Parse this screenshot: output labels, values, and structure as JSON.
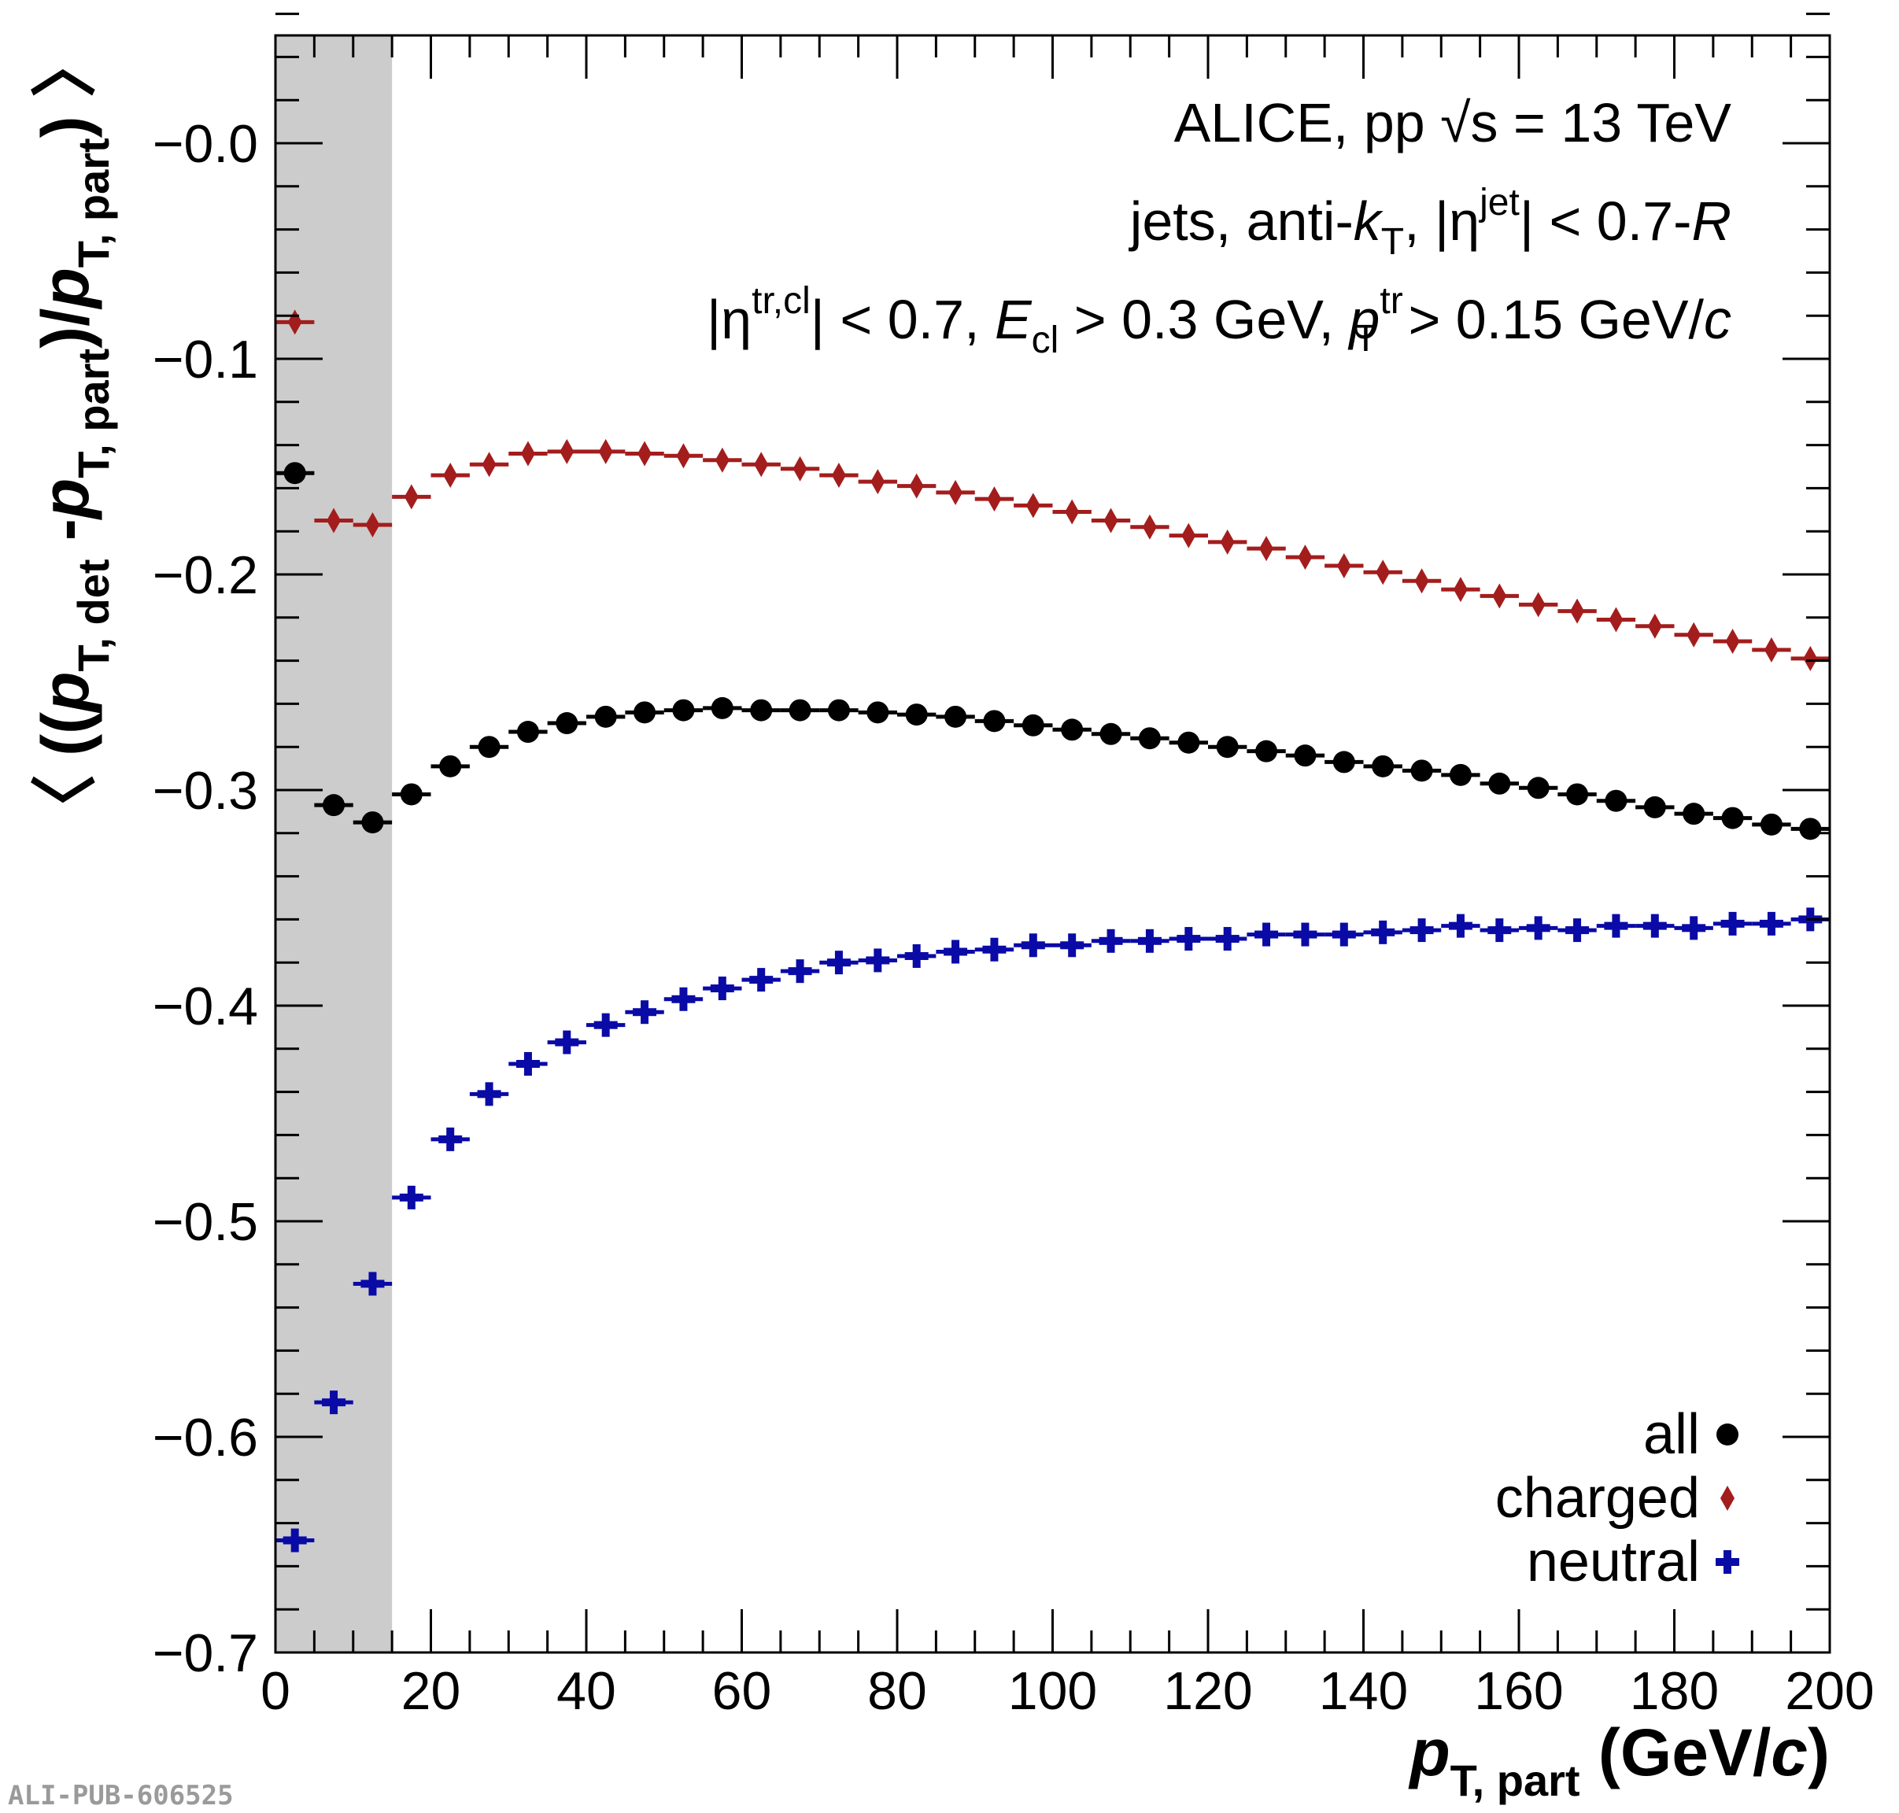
{
  "chart_data": {
    "type": "scatter",
    "xlim": [
      0,
      200
    ],
    "ylim": [
      -0.7,
      0.05
    ],
    "x_ticks": [
      0,
      20,
      40,
      60,
      80,
      100,
      120,
      140,
      160,
      180,
      200
    ],
    "x_tick_labels": [
      "0",
      "20",
      "40",
      "60",
      "80",
      "100",
      "120",
      "140",
      "160",
      "180",
      "200"
    ],
    "y_ticks": [
      -0.7,
      -0.6,
      -0.5,
      -0.4,
      -0.3,
      -0.2,
      -0.1,
      0.0
    ],
    "y_tick_labels": [
      "−0.7",
      "−0.6",
      "−0.5",
      "−0.4",
      "−0.3",
      "−0.2",
      "−0.1",
      "−0.0"
    ],
    "shaded_region_x": [
      0,
      15
    ],
    "grid": false,
    "legend_position": "bottom-right",
    "xlabel": {
      "main": "p",
      "sub": "T, part",
      "rest": " (GeV/",
      "unit_c": "c",
      "close": ")"
    },
    "ylabel": {
      "open": "〈 ((",
      "p1": "p",
      "s1": "T, det",
      "mid": " -",
      "p2": "p",
      "s2": "T, part",
      "div": ")/",
      "p3": "p",
      "s3": "T, part",
      "close": ") 〉"
    },
    "annotations": {
      "line1": {
        "a": "ALICE, pp  ",
        "sqrt": "√s",
        "b": " = 13 TeV"
      },
      "line2": {
        "a": "jets, anti-",
        "k": "k",
        "kT": "T",
        "b": ", |η",
        "jet": "jet",
        "c": "| < 0.7-",
        "R": "R"
      },
      "line3": {
        "a": "|η",
        "trcl": "tr,cl",
        "b": "| < 0.7, ",
        "E": "E",
        "cl": "cl",
        "c": " > 0.3 GeV, ",
        "p": "p",
        "tr": "tr",
        "T": "T",
        "d": " > 0.15 GeV/",
        "cc": "c"
      }
    },
    "x": [
      2.5,
      7.5,
      12.5,
      17.5,
      22.5,
      27.5,
      32.5,
      37.5,
      42.5,
      47.5,
      52.5,
      57.5,
      62.5,
      67.5,
      72.5,
      77.5,
      82.5,
      87.5,
      92.5,
      97.5,
      102.5,
      107.5,
      112.5,
      117.5,
      122.5,
      127.5,
      132.5,
      137.5,
      142.5,
      147.5,
      152.5,
      157.5,
      162.5,
      167.5,
      172.5,
      177.5,
      182.5,
      187.5,
      192.5,
      197.5
    ],
    "x_err": 2.5,
    "series": [
      {
        "name": "all",
        "color": "#000000",
        "marker": "circle",
        "values": [
          -0.153,
          -0.307,
          -0.315,
          -0.302,
          -0.289,
          -0.28,
          -0.273,
          -0.269,
          -0.266,
          -0.264,
          -0.263,
          -0.262,
          -0.263,
          -0.263,
          -0.263,
          -0.264,
          -0.265,
          -0.266,
          -0.268,
          -0.27,
          -0.272,
          -0.274,
          -0.276,
          -0.278,
          -0.28,
          -0.282,
          -0.284,
          -0.287,
          -0.289,
          -0.291,
          -0.293,
          -0.297,
          -0.299,
          -0.302,
          -0.305,
          -0.308,
          -0.311,
          -0.313,
          -0.316,
          -0.318
        ]
      },
      {
        "name": "charged",
        "color": "#a31d1d",
        "marker": "diamond",
        "values": [
          -0.083,
          -0.175,
          -0.177,
          -0.164,
          -0.154,
          -0.149,
          -0.144,
          -0.143,
          -0.143,
          -0.144,
          -0.145,
          -0.147,
          -0.149,
          -0.151,
          -0.154,
          -0.157,
          -0.159,
          -0.162,
          -0.165,
          -0.168,
          -0.171,
          -0.175,
          -0.178,
          -0.182,
          -0.185,
          -0.188,
          -0.192,
          -0.196,
          -0.199,
          -0.203,
          -0.207,
          -0.21,
          -0.214,
          -0.217,
          -0.221,
          -0.224,
          -0.228,
          -0.231,
          -0.235,
          -0.239
        ]
      },
      {
        "name": "neutral",
        "color": "#0a0aa6",
        "marker": "cross",
        "values": [
          -0.648,
          -0.584,
          -0.529,
          -0.489,
          -0.462,
          -0.441,
          -0.427,
          -0.417,
          -0.409,
          -0.403,
          -0.397,
          -0.392,
          -0.388,
          -0.384,
          -0.38,
          -0.379,
          -0.377,
          -0.375,
          -0.374,
          -0.372,
          -0.372,
          -0.37,
          -0.37,
          -0.369,
          -0.369,
          -0.367,
          -0.367,
          -0.367,
          -0.366,
          -0.365,
          -0.363,
          -0.365,
          -0.364,
          -0.365,
          -0.363,
          -0.363,
          -0.364,
          -0.362,
          -0.362,
          -0.36
        ]
      }
    ]
  },
  "footer": {
    "publication_id": "ALI-PUB-606525"
  }
}
